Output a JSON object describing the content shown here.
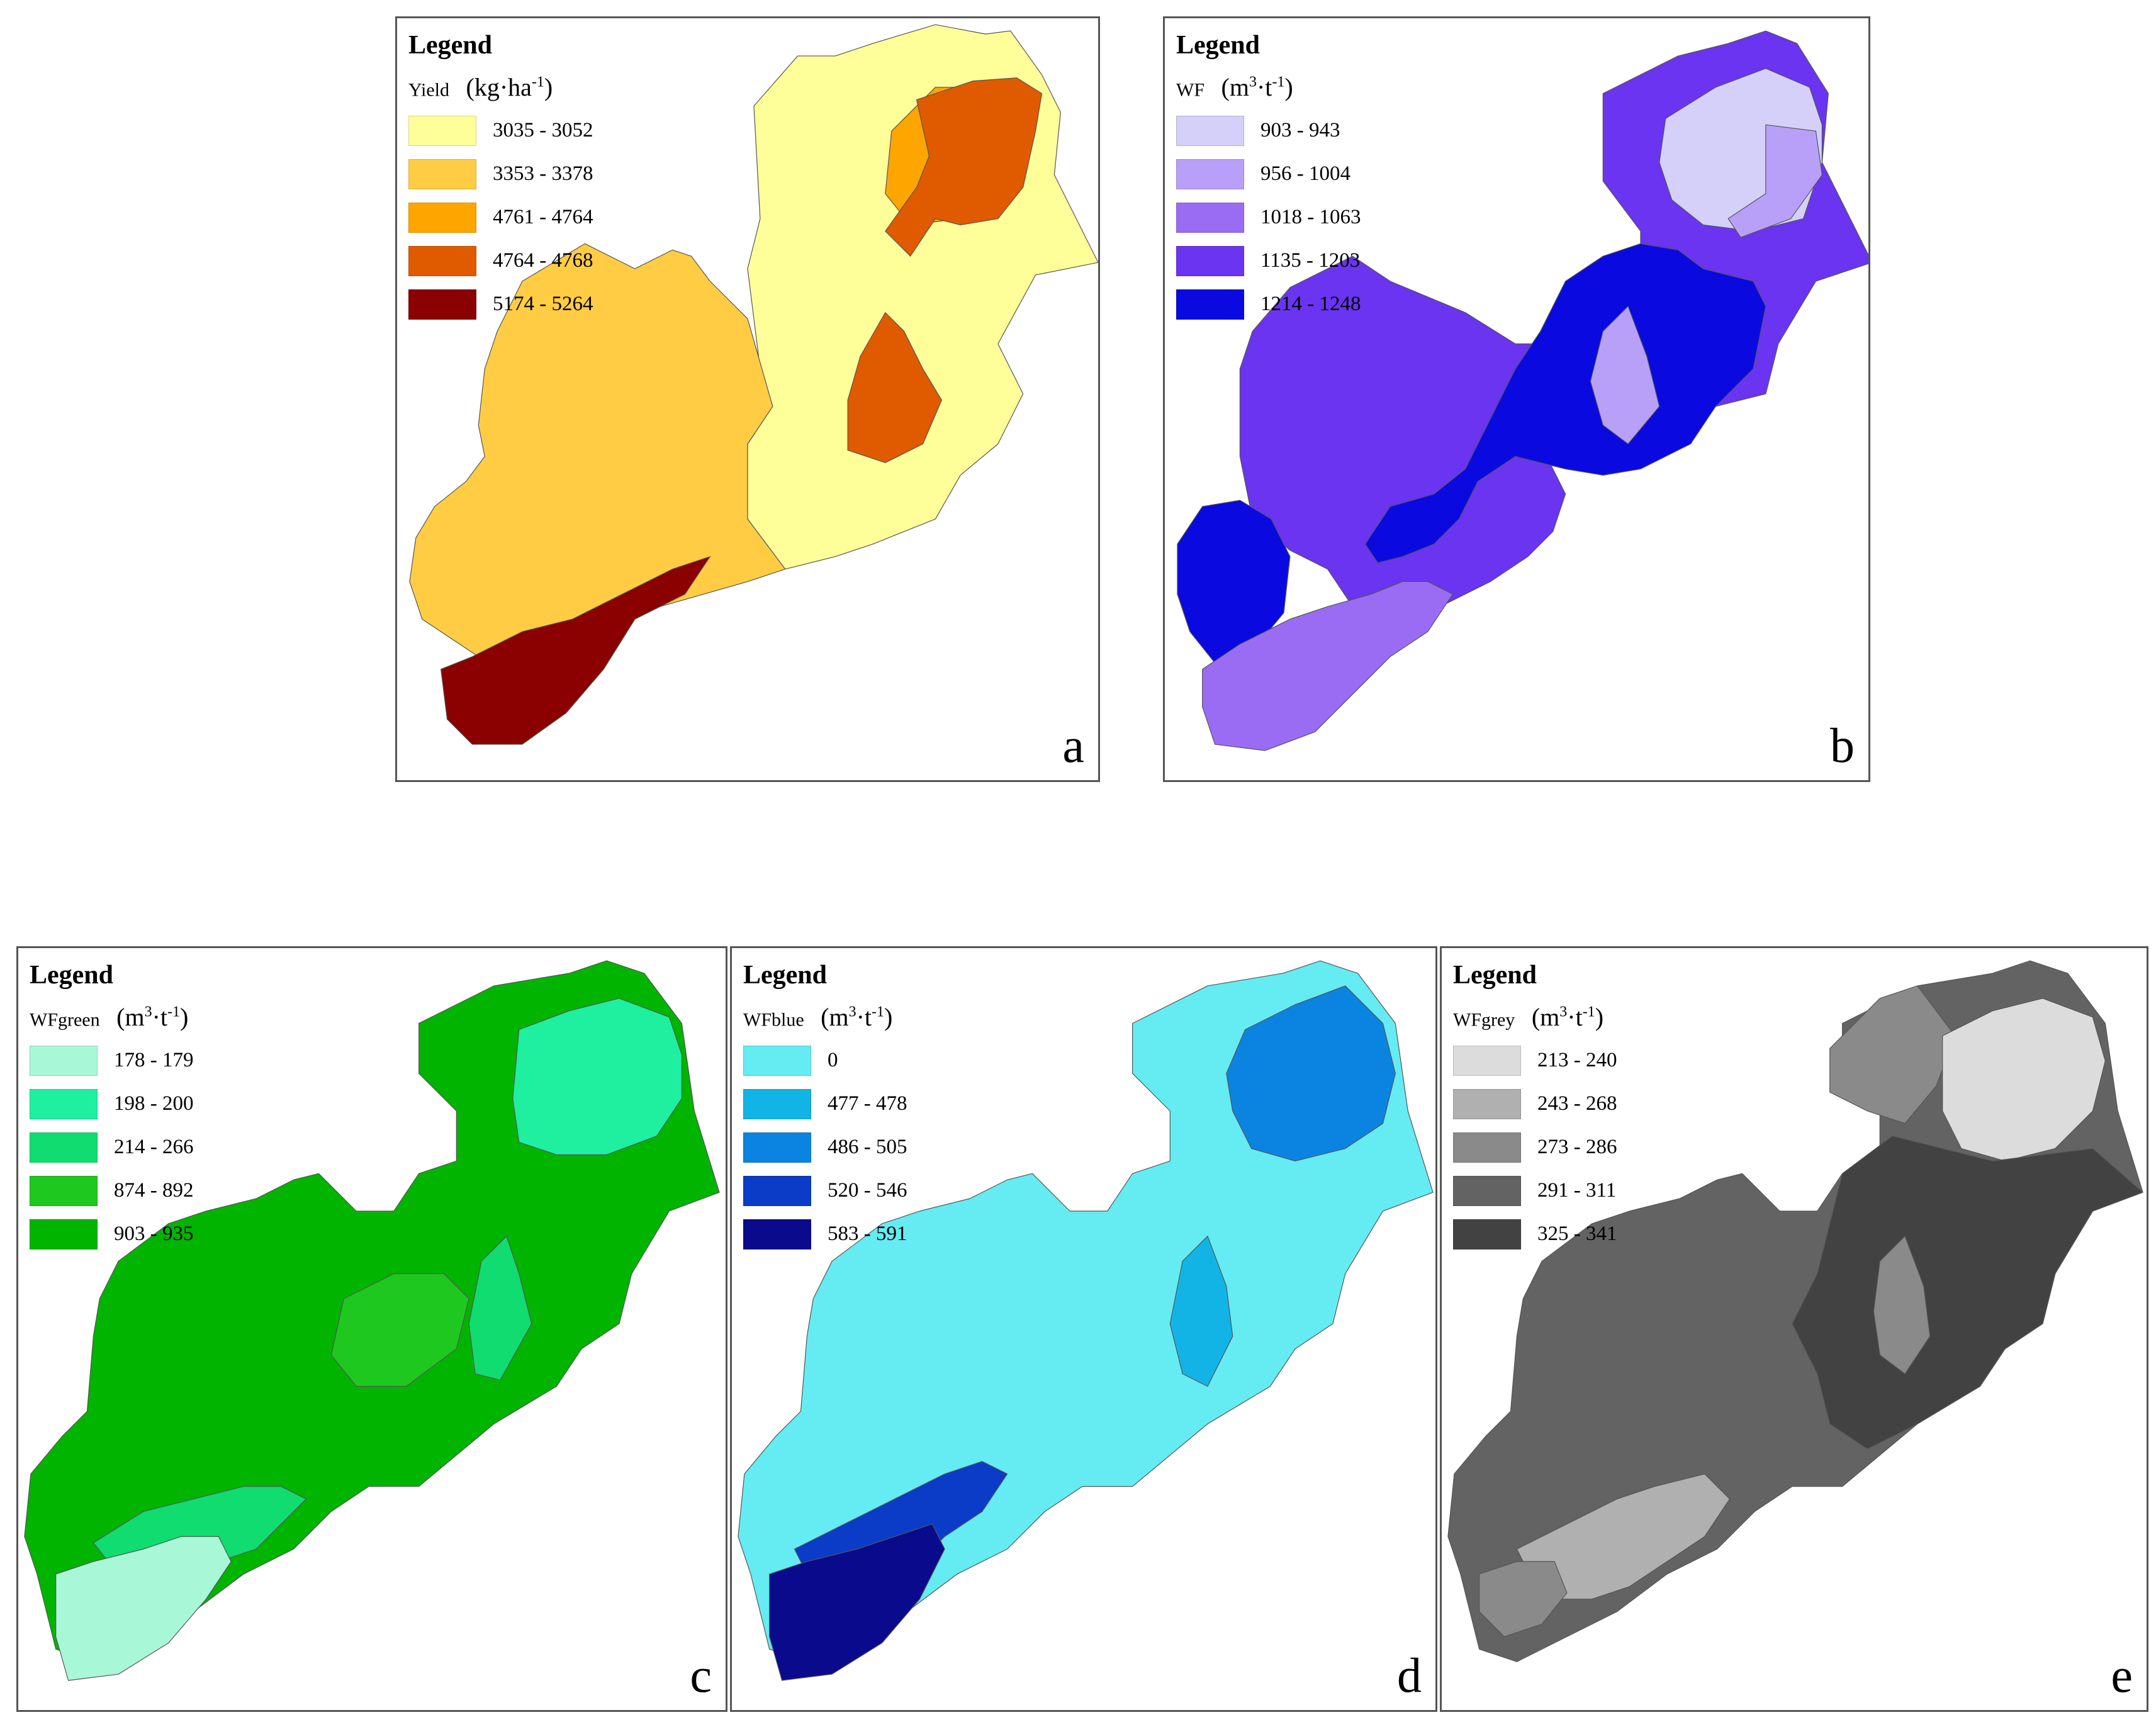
{
  "panels": {
    "a": {
      "letter": "a",
      "legend_title": "Legend",
      "variable": "Yield",
      "unit_base": "(kg·ha",
      "unit_exp": "-1",
      "unit_close": ")",
      "classes": [
        {
          "label": "3035 - 3052",
          "color": "#ffff99"
        },
        {
          "label": "3353 - 3378",
          "color": "#ffcc44"
        },
        {
          "label": "4761 - 4764",
          "color": "#ffa500"
        },
        {
          "label": "4764 - 4768",
          "color": "#e05a00"
        },
        {
          "label": "5174 - 5264",
          "color": "#8b0000"
        }
      ]
    },
    "b": {
      "letter": "b",
      "legend_title": "Legend",
      "variable": "WF",
      "unit_base": "(m",
      "unit_exp": "3",
      "unit_mid": "·t",
      "unit_exp2": "-1",
      "unit_close": ")",
      "classes": [
        {
          "label": "903 - 943",
          "color": "#d4d0fa"
        },
        {
          "label": "956 - 1004",
          "color": "#b8a0f8"
        },
        {
          "label": "1018 - 1063",
          "color": "#9a6cf4"
        },
        {
          "label": "1135 - 1203",
          "color": "#6a34f0"
        },
        {
          "label": "1214 - 1248",
          "color": "#0a0ae0"
        }
      ]
    },
    "c": {
      "letter": "c",
      "legend_title": "Legend",
      "variable": "WFgreen",
      "unit_base": "(m",
      "unit_exp": "3",
      "unit_mid": "·t",
      "unit_exp2": "-1",
      "unit_close": ")",
      "classes": [
        {
          "label": "178 - 179",
          "color": "#a8f8d8"
        },
        {
          "label": "198 - 200",
          "color": "#1ef0a0"
        },
        {
          "label": "214 - 266",
          "color": "#10dc70"
        },
        {
          "label": "874 - 892",
          "color": "#1ec81e"
        },
        {
          "label": "903 - 935",
          "color": "#00b400"
        }
      ]
    },
    "d": {
      "letter": "d",
      "legend_title": "Legend",
      "variable": "WFblue",
      "unit_base": "(m",
      "unit_exp": "3",
      "unit_mid": "·t",
      "unit_exp2": "-1",
      "unit_close": ")",
      "classes": [
        {
          "label": "0",
          "color": "#64ecf2"
        },
        {
          "label": "477 - 478",
          "color": "#12b4e6"
        },
        {
          "label": "486 - 505",
          "color": "#0a84e0"
        },
        {
          "label": "520 - 546",
          "color": "#0a3cc8"
        },
        {
          "label": "583 - 591",
          "color": "#0a0a8c"
        }
      ]
    },
    "e": {
      "letter": "e",
      "legend_title": "Legend",
      "variable": "WFgrey",
      "unit_base": "(m",
      "unit_exp": "3",
      "unit_mid": "·t",
      "unit_exp2": "-1",
      "unit_close": ")",
      "classes": [
        {
          "label": "213 - 240",
          "color": "#dcdcdc"
        },
        {
          "label": "243 - 268",
          "color": "#b0b0b0"
        },
        {
          "label": "273 - 286",
          "color": "#8a8a8a"
        },
        {
          "label": "291 - 311",
          "color": "#636363"
        },
        {
          "label": "325 - 341",
          "color": "#424242"
        }
      ]
    }
  }
}
